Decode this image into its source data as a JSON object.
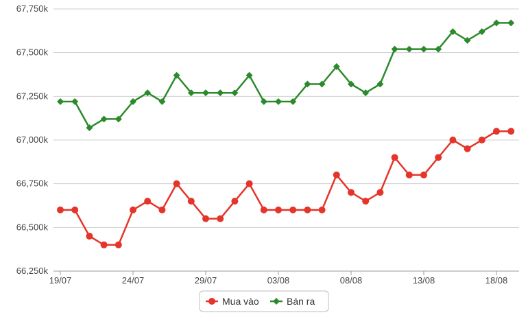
{
  "chart_data": {
    "type": "line",
    "title": "",
    "xlabel": "",
    "ylabel": "",
    "x": [
      "19/07",
      "20/07",
      "21/07",
      "22/07",
      "23/07",
      "24/07",
      "25/07",
      "26/07",
      "27/07",
      "28/07",
      "29/07",
      "30/07",
      "31/07",
      "01/08",
      "02/08",
      "03/08",
      "04/08",
      "05/08",
      "06/08",
      "07/08",
      "08/08",
      "09/08",
      "10/08",
      "11/08",
      "12/08",
      "13/08",
      "14/08",
      "15/08",
      "16/08",
      "17/08",
      "18/08",
      "19/08"
    ],
    "x_tick_labels": [
      "19/07",
      "24/07",
      "29/07",
      "03/08",
      "08/08",
      "13/08",
      "18/08"
    ],
    "y_tick_labels": [
      "66,250k",
      "66,500k",
      "66,750k",
      "67,000k",
      "67,250k",
      "67,500k",
      "67,750k"
    ],
    "y_ticks": [
      66250,
      66500,
      66750,
      67000,
      67250,
      67500,
      67750
    ],
    "ylim": [
      66250,
      67750
    ],
    "grid": "horizontal",
    "legend_position": "bottom-center",
    "series": [
      {
        "name": "Mua vào",
        "color": "#e5342a",
        "marker": "circle",
        "values": [
          66600,
          66600,
          66450,
          66400,
          66400,
          66600,
          66650,
          66600,
          66750,
          66650,
          66550,
          66550,
          66650,
          66750,
          66600,
          66600,
          66600,
          66600,
          66600,
          66800,
          66700,
          66650,
          66700,
          66900,
          66800,
          66800,
          66900,
          67000,
          66950,
          67000,
          67050,
          67050
        ]
      },
      {
        "name": "Bán ra",
        "color": "#2b8a2b",
        "marker": "diamond",
        "values": [
          67220,
          67220,
          67070,
          67120,
          67120,
          67220,
          67270,
          67220,
          67370,
          67270,
          67270,
          67270,
          67270,
          67370,
          67220,
          67220,
          67220,
          67320,
          67320,
          67420,
          67320,
          67270,
          67320,
          67520,
          67520,
          67520,
          67520,
          67620,
          67570,
          67620,
          67670,
          67670
        ]
      }
    ]
  }
}
